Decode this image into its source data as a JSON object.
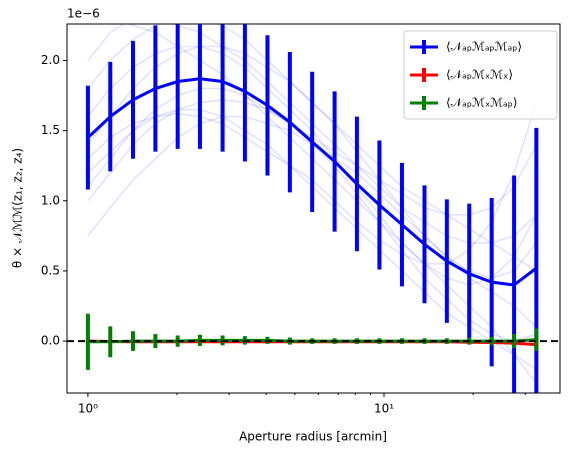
{
  "chart_data": {
    "type": "errorbar",
    "y_offset_label": "1e−6",
    "xlabel": "Aperture radius [arcmin]",
    "ylabel": "θ × 𝒩ℳℳ(z₁, z₂, z₄)",
    "xscale": "log",
    "xlim": [
      0.85,
      39.3
    ],
    "ylim": [
      -0.37,
      2.26
    ],
    "xticks": [
      {
        "value": 1,
        "label": "10⁰"
      },
      {
        "value": 10,
        "label": "10¹"
      }
    ],
    "xminorticks": [
      2,
      3,
      4,
      5,
      6,
      7,
      8,
      9,
      20,
      30
    ],
    "yticks": [
      {
        "value": 0,
        "label": "0.0"
      },
      {
        "value": 0.5,
        "label": "0.5"
      },
      {
        "value": 1,
        "label": "1.0"
      },
      {
        "value": 1.5,
        "label": "1.5"
      },
      {
        "value": 2,
        "label": "2.0"
      }
    ],
    "reference_line": 0,
    "legend": "upper right",
    "x": [
      1.0,
      1.19,
      1.42,
      1.69,
      2.01,
      2.39,
      2.85,
      3.39,
      4.04,
      4.81,
      5.72,
      6.81,
      8.1,
      9.65,
      11.5,
      13.7,
      16.3,
      19.4,
      23.1,
      27.5,
      32.7
    ],
    "samples": {
      "color": "#0000ff",
      "opacity": 0.12,
      "values": [
        [
          2.3,
          2.3,
          2.25,
          2.2,
          2.1,
          2.0,
          1.9,
          1.75,
          1.6,
          1.45,
          1.3,
          1.15,
          1.0,
          0.85,
          0.7,
          0.55,
          0.4,
          0.25,
          0.1,
          -0.1,
          -0.3
        ],
        [
          1.0,
          1.2,
          1.4,
          1.55,
          1.65,
          1.7,
          1.72,
          1.7,
          1.65,
          1.55,
          1.45,
          1.35,
          1.25,
          1.15,
          1.05,
          0.95,
          0.9,
          0.9,
          0.95,
          1.1,
          1.4
        ],
        [
          1.6,
          1.8,
          1.95,
          2.05,
          2.1,
          2.1,
          2.05,
          1.95,
          1.8,
          1.65,
          1.5,
          1.3,
          1.1,
          0.9,
          0.7,
          0.55,
          0.45,
          0.4,
          0.45,
          0.6,
          0.9
        ],
        [
          1.2,
          1.35,
          1.5,
          1.6,
          1.65,
          1.65,
          1.6,
          1.5,
          1.4,
          1.25,
          1.1,
          0.95,
          0.8,
          0.65,
          0.5,
          0.35,
          0.2,
          0.1,
          0.0,
          -0.1,
          -0.2
        ],
        [
          1.8,
          2.0,
          2.15,
          2.25,
          2.3,
          2.3,
          2.25,
          2.15,
          2.0,
          1.85,
          1.7,
          1.55,
          1.4,
          1.25,
          1.1,
          1.0,
          0.9,
          0.8,
          0.7,
          0.6,
          0.5
        ],
        [
          0.75,
          0.95,
          1.15,
          1.3,
          1.45,
          1.55,
          1.6,
          1.6,
          1.55,
          1.5,
          1.4,
          1.3,
          1.2,
          1.05,
          0.9,
          0.75,
          0.6,
          0.5,
          0.45,
          0.5,
          0.7
        ],
        [
          1.4,
          1.6,
          1.8,
          1.95,
          2.05,
          2.1,
          2.1,
          2.05,
          1.95,
          1.85,
          1.7,
          1.55,
          1.35,
          1.15,
          0.95,
          0.75,
          0.6,
          0.45,
          0.35,
          0.25,
          0.1
        ],
        [
          1.3,
          1.45,
          1.55,
          1.6,
          1.62,
          1.6,
          1.55,
          1.45,
          1.35,
          1.25,
          1.15,
          1.0,
          0.85,
          0.72,
          0.62,
          0.55,
          0.55,
          0.65,
          0.85,
          1.2,
          1.7
        ],
        [
          2.0,
          2.2,
          2.3,
          2.3,
          2.25,
          2.2,
          2.1,
          2.0,
          1.85,
          1.7,
          1.55,
          1.4,
          1.25,
          1.1,
          0.95,
          0.85,
          0.75,
          0.7,
          0.7,
          0.75,
          0.9
        ],
        [
          1.1,
          1.3,
          1.5,
          1.65,
          1.75,
          1.8,
          1.8,
          1.75,
          1.65,
          1.55,
          1.4,
          1.25,
          1.05,
          0.85,
          0.65,
          0.45,
          0.3,
          0.15,
          0.05,
          0.0,
          0.05
        ]
      ]
    },
    "series": [
      {
        "name": "⟨𝒩ₐₚℳₐₚℳₐₚ⟩",
        "color": "#0000ff",
        "values": [
          1.45,
          1.6,
          1.72,
          1.8,
          1.85,
          1.87,
          1.85,
          1.78,
          1.68,
          1.56,
          1.42,
          1.28,
          1.12,
          0.97,
          0.83,
          0.69,
          0.57,
          0.48,
          0.42,
          0.4,
          0.52
        ],
        "errors": [
          0.37,
          0.39,
          0.42,
          0.45,
          0.48,
          0.5,
          0.5,
          0.5,
          0.5,
          0.5,
          0.5,
          0.5,
          0.48,
          0.46,
          0.44,
          0.42,
          0.44,
          0.5,
          0.6,
          0.78,
          1.0
        ]
      },
      {
        "name": "⟨𝒩ₐₚℳₓℳₓ⟩",
        "color": "#ff0000",
        "values": [
          0,
          -0.003,
          -0.005,
          -0.005,
          -0.005,
          -0.005,
          -0.005,
          -0.005,
          -0.005,
          -0.005,
          -0.005,
          -0.005,
          -0.005,
          -0.005,
          -0.005,
          -0.005,
          -0.005,
          -0.008,
          -0.01,
          -0.015,
          -0.025
        ],
        "errors": [
          0.01,
          0.01,
          0.01,
          0.01,
          0.01,
          0.01,
          0.01,
          0.01,
          0.01,
          0.01,
          0.01,
          0.01,
          0.01,
          0.01,
          0.01,
          0.01,
          0.01,
          0.01,
          0.01,
          0.02,
          0.03
        ]
      },
      {
        "name": "⟨𝒩ₐₚℳₓℳₐₚ⟩",
        "color": "#008000",
        "values": [
          -0.005,
          -0.005,
          0,
          0,
          0,
          0.005,
          0.005,
          0.005,
          0.005,
          0,
          0,
          0,
          0,
          0,
          0,
          0,
          0,
          0,
          0,
          0,
          0.01
        ],
        "errors": [
          0.2,
          0.11,
          0.07,
          0.05,
          0.04,
          0.04,
          0.035,
          0.03,
          0.025,
          0.025,
          0.02,
          0.02,
          0.02,
          0.02,
          0.02,
          0.02,
          0.02,
          0.025,
          0.03,
          0.05,
          0.08
        ]
      }
    ]
  }
}
